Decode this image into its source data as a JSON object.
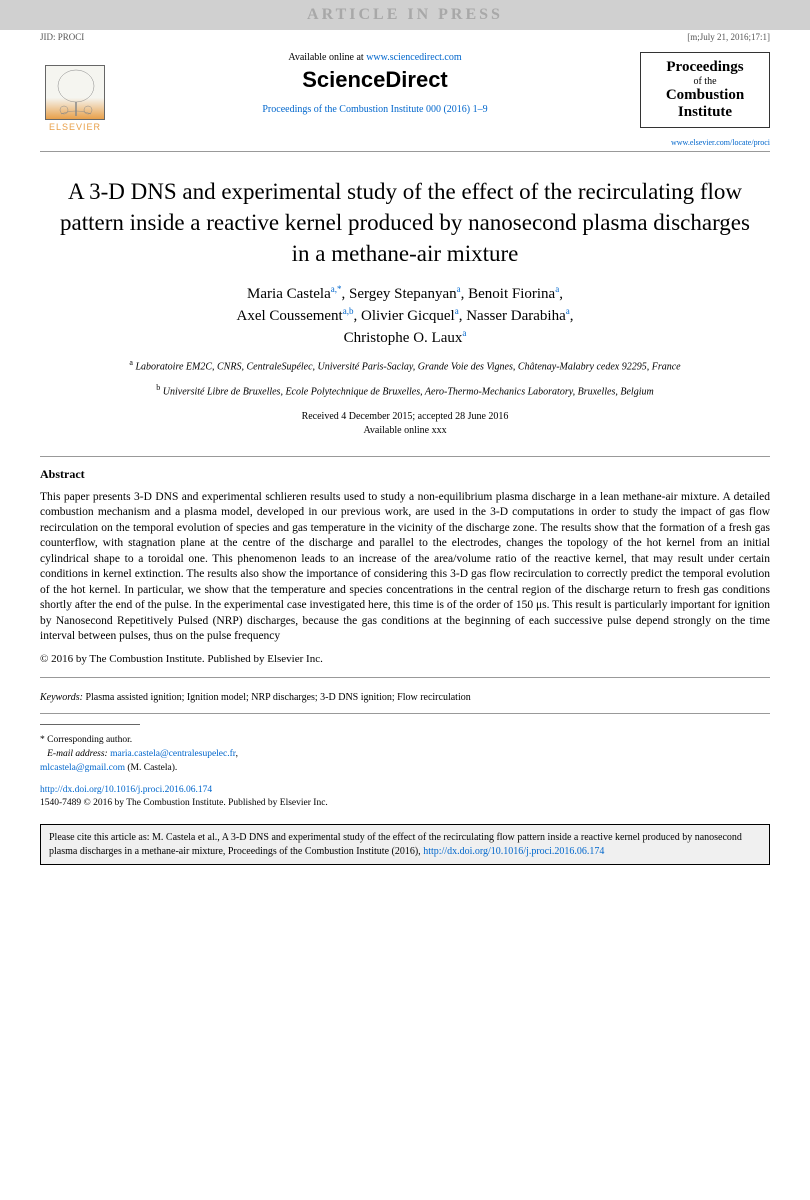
{
  "banner": "ARTICLE IN PRESS",
  "topMeta": {
    "left": "JID: PROCI",
    "right": "[m;July 21, 2016;17:1]"
  },
  "header": {
    "availableText": "Available online at ",
    "sdUrl": "www.sciencedirect.com",
    "sdLogo": "ScienceDirect",
    "procLink": "Proceedings of the Combustion Institute 000 (2016) 1–9",
    "elsevier": "ELSEVIER",
    "journalBox": {
      "line1": "Proceedings",
      "line2": "of the",
      "line3": "Combustion",
      "line4": "Institute"
    },
    "journalUrl": "www.elsevier.com/locate/proci"
  },
  "title": "A 3-D DNS and experimental study of the effect of the recirculating flow pattern inside a reactive kernel produced by nanosecond plasma discharges in a methane-air mixture",
  "authors": [
    {
      "name": "Maria Castela",
      "sup": "a,*"
    },
    {
      "name": "Sergey Stepanyan",
      "sup": "a"
    },
    {
      "name": "Benoit Fiorina",
      "sup": "a"
    },
    {
      "name": "Axel Coussement",
      "sup": "a,b"
    },
    {
      "name": "Olivier Gicquel",
      "sup": "a"
    },
    {
      "name": "Nasser Darabiha",
      "sup": "a"
    },
    {
      "name": "Christophe O. Laux",
      "sup": "a"
    }
  ],
  "affiliations": [
    {
      "sup": "a",
      "text": "Laboratoire EM2C, CNRS, CentraleSupélec, Université Paris-Saclay, Grande Voie des Vignes, Châtenay-Malabry cedex 92295, France"
    },
    {
      "sup": "b",
      "text": "Université Libre de Bruxelles, Ecole Polytechnique de Bruxelles, Aero-Thermo-Mechanics Laboratory, Bruxelles, Belgium"
    }
  ],
  "dates": {
    "received": "Received 4 December 2015; accepted 28 June 2016",
    "online": "Available online xxx"
  },
  "abstractLabel": "Abstract",
  "abstractText": "This paper presents 3-D DNS and experimental schlieren results used to study a non-equilibrium plasma discharge in a lean methane-air mixture. A detailed combustion mechanism and a plasma model, developed in our previous work, are used in the 3-D computations in order to study the impact of gas flow recirculation on the temporal evolution of species and gas temperature in the vicinity of the discharge zone. The results show that the formation of a fresh gas counterflow, with stagnation plane at the centre of the discharge and parallel to the electrodes, changes the topology of the hot kernel from an initial cylindrical shape to a toroidal one. This phenomenon leads to an increase of the area/volume ratio of the reactive kernel, that may result under certain conditions in kernel extinction. The results also show the importance of considering this 3-D gas flow recirculation to correctly predict the temporal evolution of the hot kernel. In particular, we show that the temperature and species concentrations in the central region of the discharge return to fresh gas conditions shortly after the end of the pulse. In the experimental case investigated here, this time is of the order of 150 μs. This result is particularly important for ignition by Nanosecond Repetitively Pulsed (NRP) discharges, because the gas conditions at the beginning of each successive pulse depend strongly on the time interval between pulses, thus on the pulse frequency",
  "copyright": "© 2016 by The Combustion Institute. Published by Elsevier Inc.",
  "keywords": {
    "label": "Keywords:",
    "text": "Plasma assisted ignition; Ignition model; NRP discharges; 3-D DNS ignition; Flow recirculation"
  },
  "footnotes": {
    "corr": "* Corresponding author.",
    "emailLabel": "E-mail address:",
    "email1": "maria.castela@centralesupelec.fr",
    "email2": "mlcastela@gmail.com",
    "emailSuffix": " (M. Castela)."
  },
  "doi": {
    "url": "http://dx.doi.org/10.1016/j.proci.2016.06.174",
    "issn": "1540-7489 © 2016 by The Combustion Institute. Published by Elsevier Inc."
  },
  "citation": {
    "prefix": "Please cite this article as: M. Castela et al., A 3-D DNS and experimental study of the effect of the recirculating flow pattern inside a reactive kernel produced by nanosecond plasma discharges in a methane-air mixture, Proceedings of the Combustion Institute (2016), ",
    "link": "http://dx.doi.org/10.1016/j.proci.2016.06.174"
  }
}
